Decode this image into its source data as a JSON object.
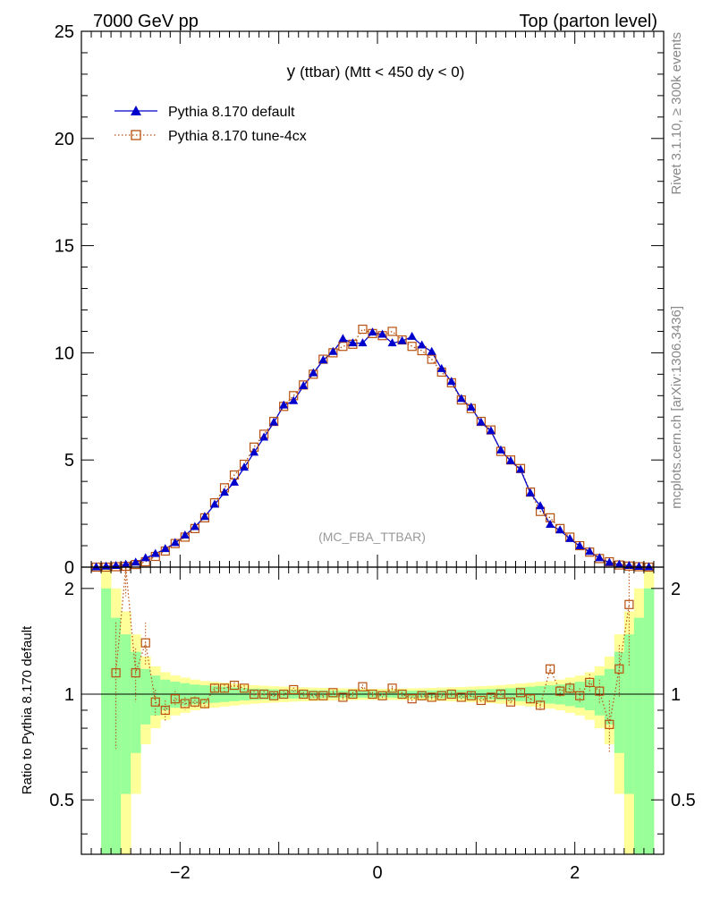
{
  "header": {
    "left": "7000 GeV pp",
    "right": "Top (parton level)"
  },
  "side_labels": {
    "rivet": "Rivet 3.1.10, ≥ 300k events",
    "mcplots": "mcplots.cern.ch [arXiv:1306.3436]"
  },
  "chart_data": [
    {
      "type": "line",
      "panel": "main",
      "title": "y (ttbar) (Mtt < 450 dy < 0)",
      "title_main": "y",
      "title_rest": "(ttbar) (Mtt < 450 dy < 0)",
      "annotation": "(MC_FBA_TTBAR)",
      "xlim": [
        -3,
        2.9
      ],
      "ylim": [
        0,
        25
      ],
      "yticks": [
        0,
        5,
        10,
        15,
        20,
        25
      ],
      "xticks": [
        -2,
        0,
        2
      ],
      "xticklabels": [
        "−2",
        "0",
        "2"
      ],
      "legend_position": "top-left",
      "x": [
        -2.85,
        -2.75,
        -2.65,
        -2.55,
        -2.45,
        -2.35,
        -2.25,
        -2.15,
        -2.05,
        -1.95,
        -1.85,
        -1.75,
        -1.65,
        -1.55,
        -1.45,
        -1.35,
        -1.25,
        -1.15,
        -1.05,
        -0.95,
        -0.85,
        -0.75,
        -0.65,
        -0.55,
        -0.45,
        -0.35,
        -0.25,
        -0.15,
        -0.05,
        0.05,
        0.15,
        0.25,
        0.35,
        0.45,
        0.55,
        0.65,
        0.75,
        0.85,
        0.95,
        1.05,
        1.15,
        1.25,
        1.35,
        1.45,
        1.55,
        1.65,
        1.75,
        1.85,
        1.95,
        2.05,
        2.15,
        2.25,
        2.35,
        2.45,
        2.55,
        2.65,
        2.75
      ],
      "series": [
        {
          "name": "Pythia 8.170 default",
          "color": "#0000cc",
          "marker": "filled-triangle",
          "values": [
            0.0,
            0.03,
            0.06,
            0.12,
            0.22,
            0.42,
            0.62,
            0.85,
            1.13,
            1.48,
            1.88,
            2.35,
            2.92,
            3.48,
            3.95,
            4.65,
            5.35,
            6.05,
            6.75,
            7.55,
            7.75,
            8.45,
            9.05,
            9.65,
            10.05,
            10.65,
            10.45,
            10.45,
            10.95,
            10.85,
            10.45,
            10.55,
            10.75,
            10.35,
            10.05,
            9.25,
            8.65,
            7.85,
            7.45,
            6.75,
            6.35,
            5.45,
            4.95,
            4.55,
            3.45,
            2.85,
            1.98,
            1.72,
            1.32,
            0.98,
            0.72,
            0.42,
            0.21,
            0.12,
            0.06,
            0.02,
            0.0
          ]
        },
        {
          "name": "Pythia 8.170 tune-4cx",
          "color": "#b8500f",
          "marker": "open-square",
          "values": [
            0.0,
            0.0,
            0.02,
            0.04,
            0.12,
            0.25,
            0.5,
            0.75,
            1.1,
            1.4,
            1.8,
            2.3,
            3.0,
            3.7,
            4.3,
            4.8,
            5.6,
            6.2,
            6.8,
            7.5,
            8.0,
            8.5,
            9.0,
            9.7,
            10.0,
            10.3,
            10.4,
            11.1,
            10.9,
            10.8,
            11.0,
            10.6,
            10.3,
            10.1,
            9.7,
            9.1,
            8.6,
            7.8,
            7.4,
            6.8,
            6.4,
            5.4,
            5.0,
            4.6,
            3.5,
            2.6,
            2.3,
            1.8,
            1.4,
            1.0,
            0.7,
            0.4,
            0.25,
            0.1,
            0.05,
            0.02,
            0.0
          ]
        }
      ]
    },
    {
      "type": "line",
      "panel": "ratio",
      "ylabel": "Ratio to Pythia 8.170 default",
      "ylim": [
        0.35,
        2.3
      ],
      "yticks": [
        0.5,
        1,
        2
      ],
      "yticklabels": [
        "0.5",
        "1",
        "2"
      ],
      "xlim": [
        -3,
        2.9
      ],
      "band_edges": [
        -2.8,
        -2.7,
        -2.6,
        -2.5,
        -2.4,
        -2.3,
        -2.2,
        -2.1,
        -2.0,
        -1.9,
        -1.8,
        -1.7,
        -1.6,
        -1.5,
        -1.4,
        -1.3,
        -1.2,
        -1.1,
        -1.0,
        -0.9,
        -0.8,
        -0.7,
        -0.6,
        -0.5,
        -0.4,
        -0.3,
        -0.2,
        -0.1,
        0.0,
        0.1,
        0.2,
        0.3,
        0.4,
        0.5,
        0.6,
        0.7,
        0.8,
        0.9,
        1.0,
        1.1,
        1.2,
        1.3,
        1.4,
        1.5,
        1.6,
        1.7,
        1.8,
        1.9,
        2.0,
        2.1,
        2.2,
        2.3,
        2.4,
        2.5,
        2.6,
        2.7,
        2.8
      ],
      "band_inner_hw": [
        1.0,
        0.65,
        0.48,
        0.32,
        0.18,
        0.13,
        0.1,
        0.085,
        0.075,
        0.065,
        0.06,
        0.055,
        0.05,
        0.045,
        0.04,
        0.037,
        0.034,
        0.032,
        0.03,
        0.028,
        0.027,
        0.026,
        0.025,
        0.024,
        0.023,
        0.022,
        0.022,
        0.021,
        0.021,
        0.022,
        0.022,
        0.023,
        0.024,
        0.025,
        0.026,
        0.027,
        0.028,
        0.03,
        0.032,
        0.034,
        0.037,
        0.04,
        0.045,
        0.05,
        0.055,
        0.06,
        0.065,
        0.075,
        0.085,
        0.1,
        0.13,
        0.18,
        0.32,
        0.48,
        0.65,
        1.0
      ],
      "band_outer_hw": [
        1.4,
        1.0,
        0.72,
        0.48,
        0.28,
        0.2,
        0.155,
        0.13,
        0.115,
        0.1,
        0.09,
        0.085,
        0.078,
        0.072,
        0.066,
        0.061,
        0.057,
        0.054,
        0.051,
        0.048,
        0.046,
        0.044,
        0.042,
        0.04,
        0.039,
        0.038,
        0.037,
        0.036,
        0.036,
        0.037,
        0.038,
        0.039,
        0.04,
        0.042,
        0.044,
        0.046,
        0.048,
        0.051,
        0.054,
        0.057,
        0.061,
        0.066,
        0.072,
        0.078,
        0.085,
        0.09,
        0.1,
        0.115,
        0.13,
        0.155,
        0.2,
        0.28,
        0.48,
        0.72,
        1.0,
        1.4
      ],
      "band_colors": {
        "inner": "#99ff99",
        "outer": "#ffff99"
      },
      "x": [
        -2.65,
        -2.55,
        -2.45,
        -2.35,
        -2.25,
        -2.15,
        -2.05,
        -1.95,
        -1.85,
        -1.75,
        -1.65,
        -1.55,
        -1.45,
        -1.35,
        -1.25,
        -1.15,
        -1.05,
        -0.95,
        -0.85,
        -0.75,
        -0.65,
        -0.55,
        -0.45,
        -0.35,
        -0.25,
        -0.15,
        -0.05,
        0.05,
        0.15,
        0.25,
        0.35,
        0.45,
        0.55,
        0.65,
        0.75,
        0.85,
        0.95,
        1.05,
        1.15,
        1.25,
        1.35,
        1.45,
        1.55,
        1.65,
        1.75,
        1.85,
        1.95,
        2.05,
        2.15,
        2.25,
        2.35,
        2.45,
        2.55
      ],
      "series": [
        {
          "name": "Pythia 8.170 tune-4cx",
          "color": "#b8500f",
          "values": [
            1.15,
            2.5,
            1.15,
            1.4,
            0.95,
            0.9,
            0.97,
            0.94,
            0.95,
            0.94,
            1.04,
            1.04,
            1.06,
            1.04,
            1.0,
            1.0,
            0.99,
            1.0,
            1.03,
            1.0,
            0.99,
            0.99,
            1.01,
            0.98,
            1.0,
            1.05,
            1.0,
            0.99,
            1.04,
            1.0,
            0.97,
            0.99,
            0.98,
            0.99,
            1.0,
            0.98,
            0.99,
            0.96,
            0.98,
            1.0,
            0.95,
            1.01,
            0.97,
            0.93,
            1.18,
            1.02,
            1.04,
            0.99,
            1.08,
            1.02,
            0.82,
            1.18,
            1.8
          ],
          "errors": [
            0.45,
            0.6,
            0.2,
            0.2,
            0.08,
            0.06,
            0.05,
            0.04,
            0.035,
            0.03,
            0.03,
            0.025,
            0.02,
            0.02,
            0.02,
            0.02,
            0.02,
            0.02,
            0.015,
            0.015,
            0.015,
            0.015,
            0.015,
            0.015,
            0.015,
            0.015,
            0.015,
            0.015,
            0.015,
            0.015,
            0.015,
            0.015,
            0.015,
            0.015,
            0.015,
            0.015,
            0.02,
            0.02,
            0.02,
            0.02,
            0.02,
            0.02,
            0.025,
            0.03,
            0.03,
            0.035,
            0.04,
            0.05,
            0.06,
            0.08,
            0.14,
            0.2,
            0.6
          ]
        }
      ]
    }
  ]
}
